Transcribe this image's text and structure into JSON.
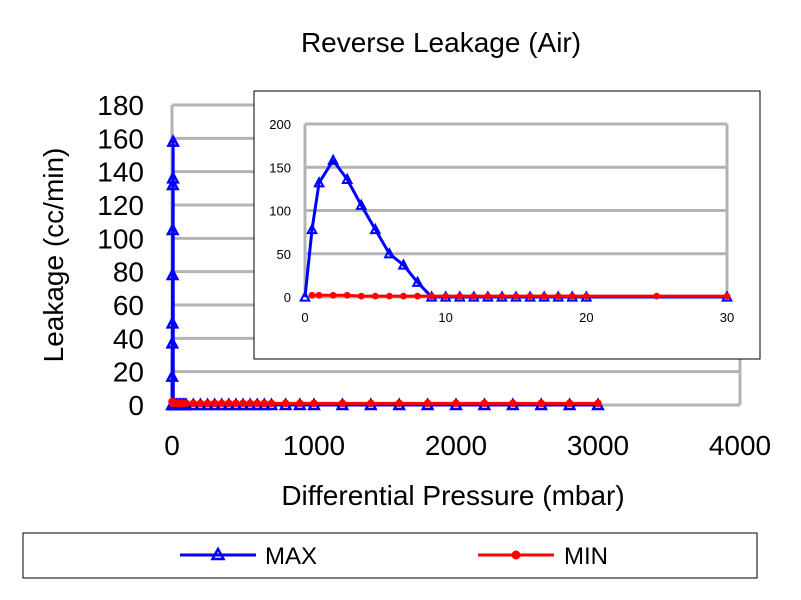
{
  "chart_data": [
    {
      "type": "line",
      "title": "Reverse Leakage (Air)",
      "xlabel": "Differential Pressure (mbar)",
      "ylabel": "Leakage (cc/min)",
      "xlim": [
        0,
        4000
      ],
      "ylim": [
        0,
        180
      ],
      "x_ticks": [
        "0",
        "1000",
        "2000",
        "3000",
        "4000"
      ],
      "y_ticks": [
        "0",
        "20",
        "40",
        "60",
        "80",
        "100",
        "120",
        "140",
        "160",
        "180"
      ],
      "grid": true,
      "legend": {
        "placement": "bottom",
        "entries": [
          "MAX",
          "MIN"
        ]
      },
      "series": [
        {
          "name": "MAX",
          "color": "#0000ff",
          "marker": "triangle",
          "x": [
            0,
            1,
            2,
            3,
            4,
            5,
            6,
            7,
            8,
            9,
            10,
            20,
            30,
            40,
            50,
            60,
            70,
            80,
            90,
            100,
            150,
            200,
            250,
            300,
            350,
            400,
            450,
            500,
            550,
            600,
            650,
            700,
            800,
            900,
            1000,
            1200,
            1400,
            1600,
            1800,
            2000,
            2200,
            2400,
            2600,
            2800,
            3000
          ],
          "y": [
            0,
            17,
            37,
            49,
            78,
            105,
            132,
            136,
            158,
            0,
            0,
            0,
            0,
            0,
            0,
            0,
            0,
            0,
            0,
            0,
            0,
            0,
            0,
            0,
            0,
            0,
            0,
            0,
            0,
            0,
            0,
            0,
            0,
            0,
            0,
            0,
            0,
            0,
            0,
            0,
            0,
            0,
            0,
            0,
            0
          ]
        },
        {
          "name": "MIN",
          "color": "#ff0000",
          "marker": "circle",
          "x": [
            0,
            1,
            2,
            3,
            4,
            5,
            6,
            7,
            8,
            9,
            10,
            20,
            30,
            40,
            50,
            60,
            70,
            80,
            90,
            100,
            150,
            200,
            250,
            300,
            350,
            400,
            450,
            500,
            550,
            600,
            650,
            700,
            800,
            900,
            1000,
            1200,
            1400,
            1600,
            1800,
            2000,
            2200,
            2400,
            2600,
            2800,
            3000
          ],
          "y": [
            2,
            2,
            2,
            2,
            1,
            1,
            1,
            1,
            1,
            1,
            1,
            1,
            1,
            1,
            1,
            1,
            1,
            1,
            1,
            1,
            1,
            1,
            1,
            1,
            1,
            1,
            1,
            1,
            1,
            1,
            1,
            1,
            1,
            1,
            1,
            1,
            1,
            1,
            1,
            1,
            1,
            1,
            1,
            1,
            1
          ]
        }
      ]
    },
    {
      "type": "line",
      "title": "",
      "xlabel": "",
      "ylabel": "",
      "xlim": [
        0,
        30
      ],
      "ylim": [
        0,
        200
      ],
      "x_ticks": [
        "0",
        "10",
        "20",
        "30"
      ],
      "y_ticks": [
        "0",
        "50",
        "100",
        "150",
        "200"
      ],
      "grid": true,
      "series": [
        {
          "name": "MAX",
          "color": "#0000ff",
          "marker": "triangle",
          "x": [
            0,
            0.5,
            1,
            2,
            3,
            4,
            5,
            6,
            7,
            8,
            9,
            10,
            11,
            12,
            13,
            14,
            15,
            16,
            17,
            18,
            19,
            20,
            30
          ],
          "y": [
            0,
            78,
            132,
            158,
            136,
            106,
            78,
            50,
            37,
            17,
            0,
            0,
            0,
            0,
            0,
            0,
            0,
            0,
            0,
            0,
            0,
            0,
            0
          ]
        },
        {
          "name": "MIN",
          "color": "#ff0000",
          "marker": "circle",
          "x": [
            0.5,
            1,
            2,
            3,
            4,
            5,
            6,
            7,
            8,
            9,
            10,
            11,
            12,
            13,
            14,
            15,
            16,
            17,
            18,
            19,
            20,
            25,
            30
          ],
          "y": [
            2,
            2,
            2,
            2,
            1,
            1,
            1,
            1,
            1,
            1,
            1,
            1,
            1,
            1,
            1,
            1,
            1,
            1,
            1,
            1,
            1,
            1,
            1
          ]
        }
      ]
    }
  ]
}
